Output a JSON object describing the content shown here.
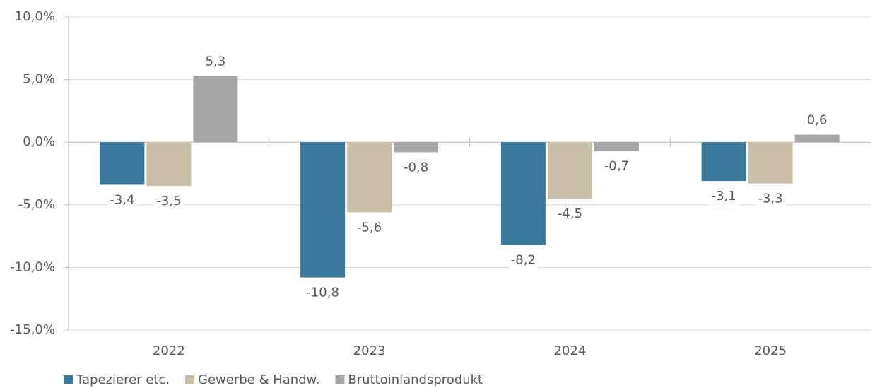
{
  "chart_data": {
    "type": "bar",
    "categories": [
      "2022",
      "2023",
      "2024",
      "2025"
    ],
    "series": [
      {
        "name": "Tapezierer etc.",
        "color": "#3a789c",
        "values": [
          -3.4,
          -10.8,
          -8.2,
          -3.1
        ],
        "value_labels": [
          "-3,4",
          "-10,8",
          "-8,2",
          "-3,1"
        ]
      },
      {
        "name": "Gewerbe & Handw.",
        "color": "#c9bfa7",
        "values": [
          -3.5,
          -5.6,
          -4.5,
          -3.3
        ],
        "value_labels": [
          "-3,5",
          "-5,6",
          "-4,5",
          "-3,3"
        ]
      },
      {
        "name": "Bruttoinlandsprodukt",
        "color": "#a5a5a5",
        "values": [
          5.3,
          -0.8,
          -0.7,
          0.6
        ],
        "value_labels": [
          "5,3",
          "-0,8",
          "-0,7",
          "0,6"
        ]
      }
    ],
    "ylim": [
      -15,
      10
    ],
    "yticks": [
      {
        "value": -15,
        "label": "-15,0%"
      },
      {
        "value": -10,
        "label": "-10,0%"
      },
      {
        "value": -5,
        "label": "-5,0%"
      },
      {
        "value": 0,
        "label": "0,0%"
      },
      {
        "value": 5,
        "label": "5,0%"
      },
      {
        "value": 10,
        "label": "10,0%"
      }
    ],
    "grid": true,
    "legend": "bottom"
  }
}
